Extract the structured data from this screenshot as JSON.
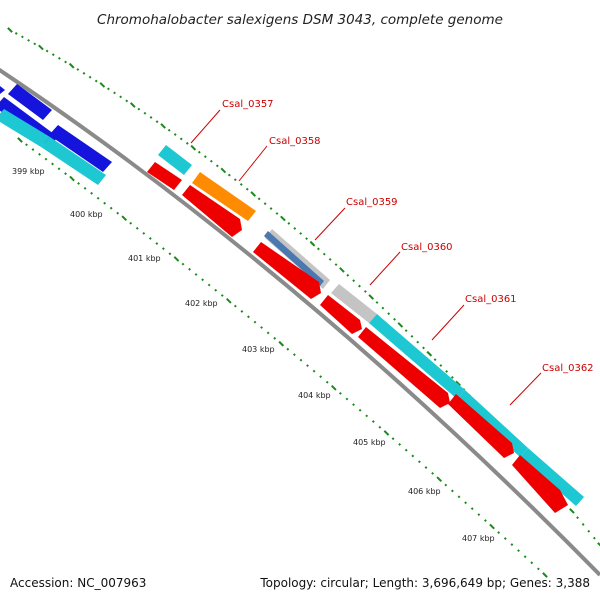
{
  "title": "Chromohalobacter salexigens DSM 3043, complete genome",
  "footer": {
    "accession": "Accession: NC_007963",
    "topology": "Topology: circular; Length: 3,696,649 bp; Genes: 3,388"
  },
  "colors": {
    "backbone": "#8a8a8a",
    "dots": "#1a8a1a",
    "label_line": "#cc0000",
    "cyan": "#1ec8d2",
    "blue": "#1414dc",
    "red": "#ee0000",
    "orange": "#ff8c00",
    "gray": "#c4c4c4",
    "steel": "#4a78b0"
  },
  "kbp_ticks": [
    "399 kbp",
    "400 kbp",
    "401 kbp",
    "402 kbp",
    "403 kbp",
    "404 kbp",
    "405 kbp",
    "406 kbp",
    "407 kbp"
  ],
  "gene_labels": [
    "Csal_0357",
    "Csal_0358",
    "Csal_0359",
    "Csal_0360",
    "Csal_0361",
    "Csal_0362"
  ]
}
